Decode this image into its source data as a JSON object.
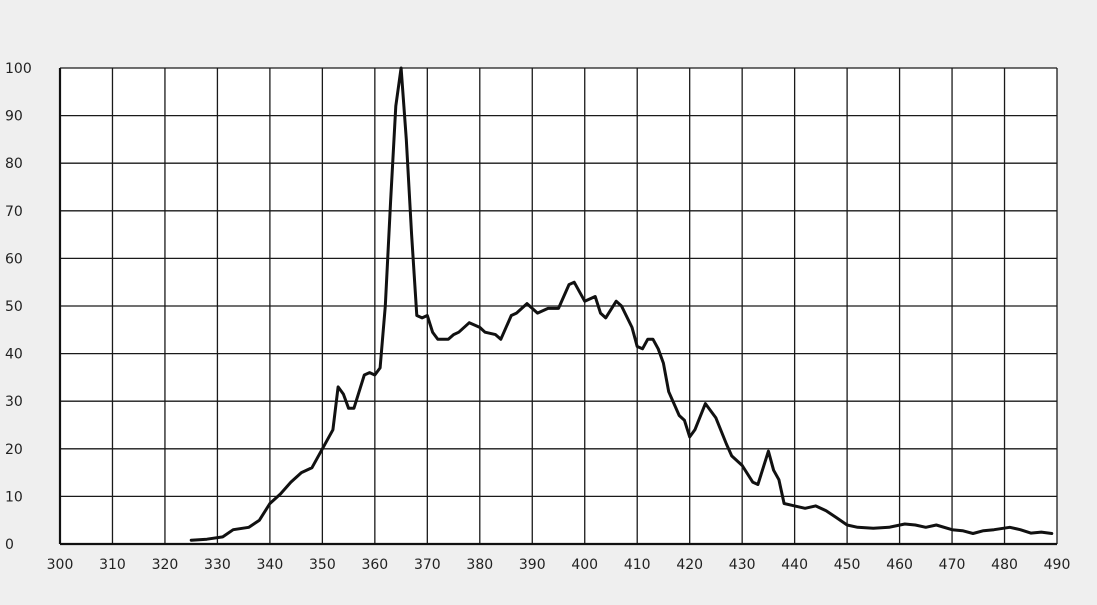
{
  "chart_data": {
    "type": "line",
    "title": "",
    "xlabel": "",
    "ylabel": "",
    "xlim": [
      300,
      490
    ],
    "ylim": [
      0,
      100
    ],
    "grid": true,
    "x_ticks": [
      300,
      310,
      320,
      330,
      340,
      350,
      360,
      370,
      380,
      390,
      400,
      410,
      420,
      430,
      440,
      450,
      460,
      470,
      480,
      490
    ],
    "y_ticks": [
      0,
      10,
      20,
      30,
      40,
      50,
      60,
      70,
      80,
      90,
      100
    ],
    "series": [
      {
        "points": [
          [
            325,
            0.8
          ],
          [
            328,
            1
          ],
          [
            331,
            1.5
          ],
          [
            333,
            3
          ],
          [
            336,
            3.5
          ],
          [
            338,
            5
          ],
          [
            340,
            8.5
          ],
          [
            342,
            10.5
          ],
          [
            344,
            13
          ],
          [
            346,
            15
          ],
          [
            348,
            16
          ],
          [
            350,
            20
          ],
          [
            352,
            24
          ],
          [
            353,
            33
          ],
          [
            354,
            31.5
          ],
          [
            355,
            28.5
          ],
          [
            356,
            28.5
          ],
          [
            357,
            32
          ],
          [
            358,
            35.5
          ],
          [
            359,
            36
          ],
          [
            360,
            35.5
          ],
          [
            361,
            37
          ],
          [
            362,
            50
          ],
          [
            363,
            72
          ],
          [
            364,
            92
          ],
          [
            365,
            100
          ],
          [
            366,
            85
          ],
          [
            367,
            65
          ],
          [
            368,
            48
          ],
          [
            369,
            47.5
          ],
          [
            370,
            48
          ],
          [
            371,
            44.5
          ],
          [
            372,
            43
          ],
          [
            374,
            43
          ],
          [
            375,
            44
          ],
          [
            376,
            44.5
          ],
          [
            378,
            46.5
          ],
          [
            380,
            45.5
          ],
          [
            381,
            44.5
          ],
          [
            383,
            44
          ],
          [
            384,
            43
          ],
          [
            386,
            48
          ],
          [
            387,
            48.5
          ],
          [
            389,
            50.5
          ],
          [
            391,
            48.5
          ],
          [
            393,
            49.5
          ],
          [
            395,
            49.5
          ],
          [
            397,
            54.5
          ],
          [
            398,
            55
          ],
          [
            400,
            51
          ],
          [
            402,
            52
          ],
          [
            403,
            48.5
          ],
          [
            404,
            47.5
          ],
          [
            406,
            51
          ],
          [
            407,
            50
          ],
          [
            409,
            45.5
          ],
          [
            410,
            41.5
          ],
          [
            411,
            41
          ],
          [
            412,
            43
          ],
          [
            413,
            43
          ],
          [
            414,
            41
          ],
          [
            415,
            38
          ],
          [
            416,
            32
          ],
          [
            418,
            27
          ],
          [
            419,
            26
          ],
          [
            420,
            22.5
          ],
          [
            421,
            24
          ],
          [
            423,
            29.5
          ],
          [
            425,
            26.5
          ],
          [
            427,
            21
          ],
          [
            428,
            18.5
          ],
          [
            430,
            16.5
          ],
          [
            432,
            13
          ],
          [
            433,
            12.5
          ],
          [
            435,
            19.5
          ],
          [
            436,
            15.5
          ],
          [
            437,
            13.5
          ],
          [
            438,
            8.5
          ],
          [
            440,
            8
          ],
          [
            442,
            7.5
          ],
          [
            444,
            8
          ],
          [
            446,
            7
          ],
          [
            448,
            5.5
          ],
          [
            450,
            4
          ],
          [
            452,
            3.5
          ],
          [
            455,
            3.3
          ],
          [
            458,
            3.5
          ],
          [
            461,
            4.2
          ],
          [
            463,
            4
          ],
          [
            465,
            3.5
          ],
          [
            467,
            4
          ],
          [
            470,
            3
          ],
          [
            472,
            2.8
          ],
          [
            474,
            2.2
          ],
          [
            476,
            2.8
          ],
          [
            478,
            3
          ],
          [
            481,
            3.5
          ],
          [
            483,
            3
          ],
          [
            485,
            2.3
          ],
          [
            487,
            2.5
          ],
          [
            489,
            2.2
          ]
        ]
      }
    ]
  }
}
